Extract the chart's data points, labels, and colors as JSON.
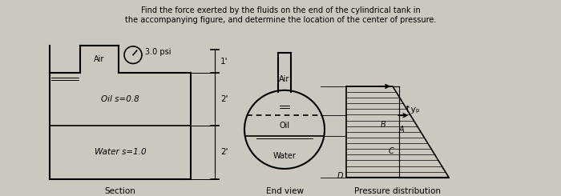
{
  "title_line1": "Find the force exerted by the fluids on the end of the cylindrical tank in",
  "title_line2": "the accompanying figure, and determine the location of the center of pressure.",
  "bg_color": "#ccc8c0",
  "section_label": "Section",
  "end_view_label": "End view",
  "pressure_dist_label": "Pressure distribution",
  "air_label": "Air",
  "oil_label": "Oil s=0.8",
  "water_label": "Water s=1.0",
  "oil_end_label": "Oil",
  "water_end_label": "Water",
  "air_end_label": "Air",
  "pressure_psi": "3.0 psi",
  "dim_1ft": "1'",
  "dim_2ft_1": "2'",
  "dim_2ft_2": "2'",
  "yp_label": "↑yₚ",
  "B": "B",
  "A": "A",
  "C": "C",
  "D": "D",
  "lw": 1.2
}
